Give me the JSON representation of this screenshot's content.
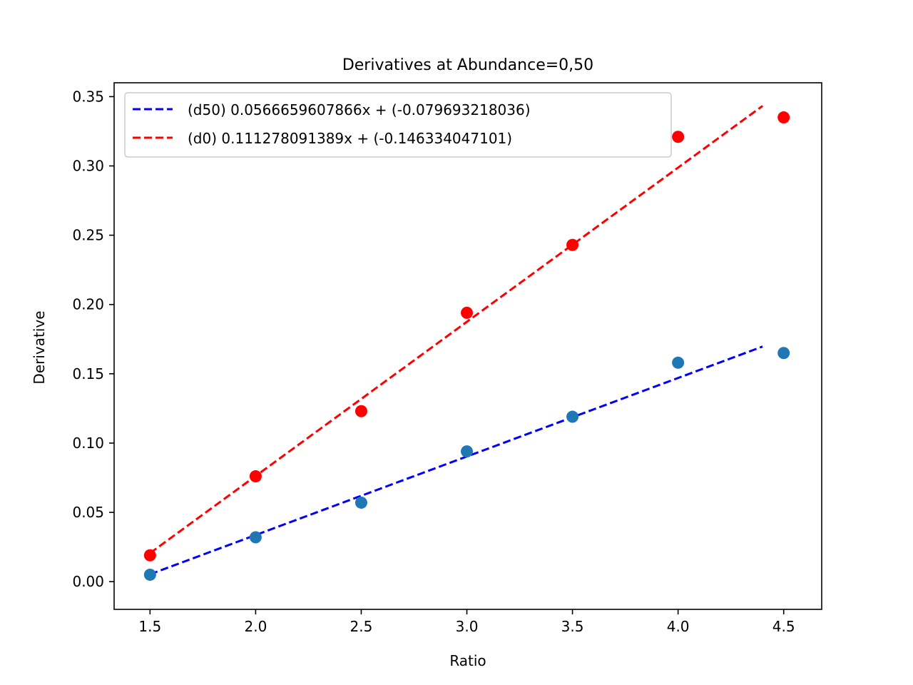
{
  "chart_data": {
    "type": "scatter",
    "title": "Derivatives at Abundance=0,50",
    "xlabel": "Ratio",
    "ylabel": "Derivative",
    "xlim": [
      1.33,
      4.68
    ],
    "ylim": [
      -0.02,
      0.36
    ],
    "xticks": [
      "1.5",
      "2.0",
      "2.5",
      "3.0",
      "3.5",
      "4.0",
      "4.5"
    ],
    "yticks": [
      "0.00",
      "0.05",
      "0.10",
      "0.15",
      "0.20",
      "0.25",
      "0.30",
      "0.35"
    ],
    "grid": false,
    "legend_position": "top-left",
    "scatter_series": [
      {
        "color": "#1f77b4",
        "x": [
          1.5,
          2.0,
          2.5,
          3.0,
          3.5,
          4.0,
          4.5
        ],
        "y": [
          0.005,
          0.032,
          0.057,
          0.094,
          0.119,
          0.158,
          0.165
        ]
      },
      {
        "color": "#ff0000",
        "x": [
          1.5,
          2.0,
          2.5,
          3.0,
          3.5,
          4.0,
          4.5
        ],
        "y": [
          0.019,
          0.076,
          0.123,
          0.194,
          0.243,
          0.321,
          0.335
        ]
      }
    ],
    "fit_lines": [
      {
        "name": "(d50) 0.0566659607866x + (-0.079693218036)",
        "color": "#0000ff",
        "slope": 0.0566659607866,
        "intercept": -0.079693218036,
        "x_range": [
          1.5,
          4.4
        ]
      },
      {
        "name": "(d0) 0.111278091389x + (-0.146334047101)",
        "color": "#ff0000",
        "slope": 0.111278091389,
        "intercept": -0.146334047101,
        "x_range": [
          1.5,
          4.4
        ]
      }
    ]
  }
}
